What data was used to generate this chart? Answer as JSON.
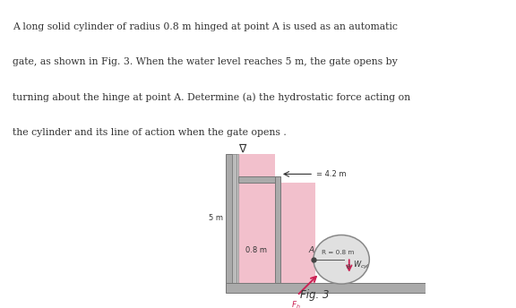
{
  "bg_color": "#ffffff",
  "water_color": "#f2c0cc",
  "wall_gray1": "#aaaaaa",
  "wall_gray2": "#bbbbbb",
  "wall_gray3": "#cccccc",
  "wall_edge": "#777777",
  "floor_color": "#aaaaaa",
  "text_color": "#333333",
  "title_text": "Fig. 3",
  "paragraph_lines": [
    "A long solid cylinder of radius 0.8 m hinged at point A is used as an automatic",
    "gate, as shown in Fig. 3. When the water level reaches 5 m, the gate opens by",
    "turning about the hinge at point A. Determine (a) the hydrostatic force acting on",
    "the cylinder and its line of action when the gate opens ."
  ],
  "label_5m": "5 m",
  "label_08m": "0.8 m",
  "label_42m": "= 4.2 m",
  "label_R": "R = 0.8 m",
  "label_A": "A",
  "arrow_color": "#cc2255",
  "cylinder_face": "#e0e0e0",
  "cylinder_edge": "#888888",
  "hinge_color": "#444444",
  "dim_line_color": "#555555",
  "font_size_para": 7.8,
  "font_size_label": 6.0,
  "font_size_fig": 8.5
}
